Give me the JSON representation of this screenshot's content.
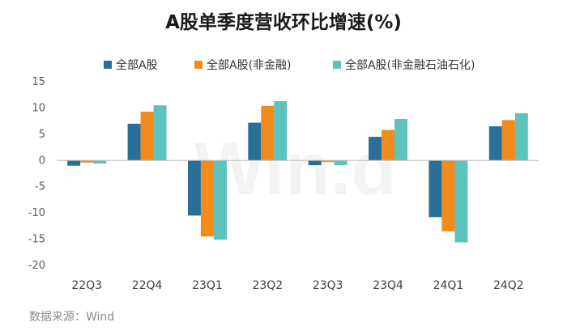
{
  "chart_data": {
    "type": "bar",
    "title": "A股单季度营收环比增速(%)",
    "categories": [
      "22Q3",
      "22Q4",
      "23Q1",
      "23Q2",
      "23Q3",
      "23Q4",
      "24Q1",
      "24Q2"
    ],
    "series": [
      {
        "name": "全部A股",
        "color": "#2a6f97",
        "values": [
          -1.0,
          7.0,
          -10.5,
          7.2,
          -0.9,
          4.5,
          -10.8,
          6.5
        ]
      },
      {
        "name": "全部A股(非金融)",
        "color": "#f28b1c",
        "values": [
          -0.4,
          9.3,
          -14.5,
          10.4,
          -0.3,
          5.8,
          -13.5,
          7.7
        ]
      },
      {
        "name": "全部A股(非金融石油石化)",
        "color": "#5ec3bd",
        "values": [
          -0.6,
          10.5,
          -15.1,
          11.3,
          -0.9,
          7.9,
          -15.6,
          9.0
        ]
      }
    ],
    "ylim": [
      -20,
      15
    ],
    "yticks": [
      15,
      10,
      5,
      0,
      -5,
      -10,
      -15,
      -20
    ],
    "grid": false,
    "legend": "top-center",
    "source": "数据来源：Wind",
    "watermark": "Wind"
  }
}
